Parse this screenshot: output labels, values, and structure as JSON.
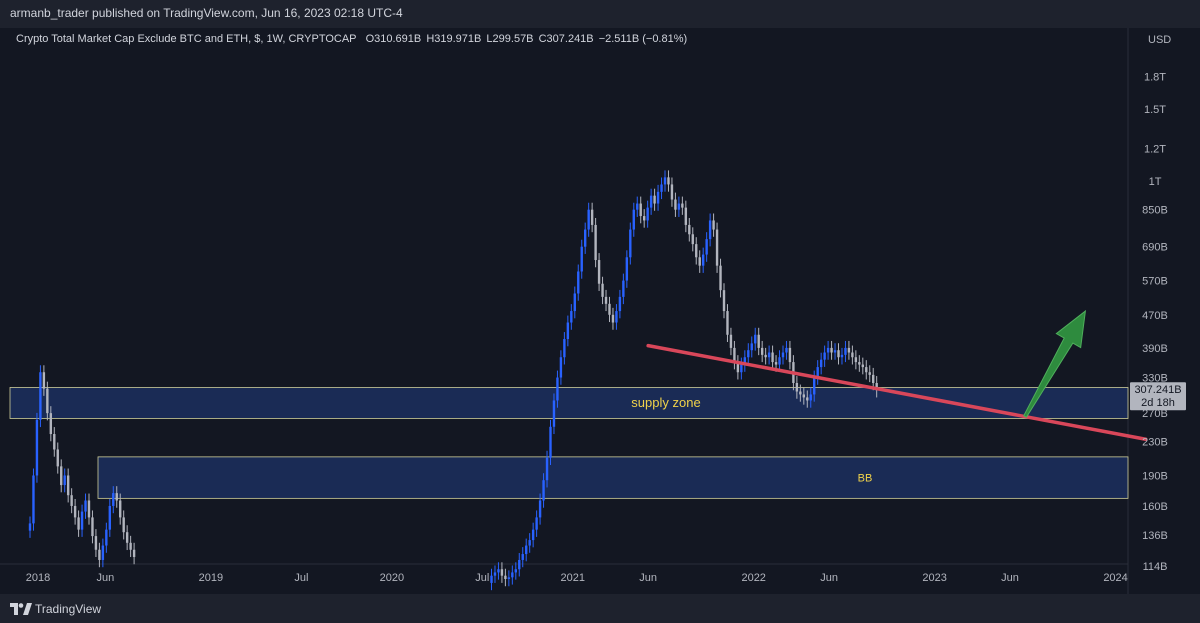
{
  "header": {
    "published_line": "armanb_trader published on TradingView.com, Jun 16, 2023 02:18 UTC-4"
  },
  "legend": {
    "symbol": "Crypto Total Market Cap Exclude BTC and ETH, $, 1W, CRYPTOCAP",
    "open": "O310.691B",
    "high": "H319.971B",
    "low": "L299.57B",
    "close": "C307.241B",
    "change": "−2.511B (−0.81%)"
  },
  "footer": {
    "brand": "TradingView"
  },
  "colors": {
    "background": "#131722",
    "candle_up": "#2962ff",
    "candle_down": "#b2b5be",
    "trendline": "#d9475a",
    "arrow": "#2e8b3e",
    "zone_fill": "#1c2f5e",
    "zone_border": "#cfcf9a",
    "zone_label": "#f0d24a"
  },
  "chart_data": {
    "type": "candlestick",
    "title": "Crypto Total Market Cap Exclude BTC and ETH, $, 1W, CRYPTOCAP",
    "currency_label": "USD",
    "y_scale": "log",
    "ylim": [
      "106B",
      "2.25T"
    ],
    "y_ticks": [
      "1.8T",
      "1.5T",
      "1.2T",
      "1T",
      "850B",
      "690B",
      "570B",
      "470B",
      "390B",
      "330B",
      "270B",
      "230B",
      "190B",
      "160B",
      "136B",
      "114B"
    ],
    "x_ticks": [
      "2018",
      "Jun",
      "2019",
      "Jul",
      "2020",
      "Jul",
      "2021",
      "Jun",
      "2022",
      "Jun",
      "2023",
      "Jun",
      "2024"
    ],
    "price_label": {
      "value": "307.241B",
      "countdown": "2d 18h"
    },
    "zones": [
      {
        "label": "supply zone",
        "high_B": 312,
        "low_B": 262
      },
      {
        "label": "BB",
        "high_B": 211,
        "low_B": 167
      }
    ],
    "trendline": {
      "from": [
        "2021-06",
        "395B"
      ],
      "to": [
        "2024-03",
        "233B"
      ]
    },
    "arrow": {
      "direction": "up",
      "from": [
        "2023-07",
        "265B"
      ],
      "to": [
        "2023-11",
        "480B"
      ]
    },
    "series": [
      {
        "period": "2018-01 to 2018-07",
        "points": [
          [
            0,
            145
          ],
          [
            1,
            190
          ],
          [
            2,
            260
          ],
          [
            3,
            340
          ],
          [
            4,
            310
          ],
          [
            5,
            270
          ],
          [
            6,
            240
          ],
          [
            7,
            220
          ],
          [
            8,
            200
          ],
          [
            9,
            180
          ],
          [
            10,
            190
          ],
          [
            11,
            170
          ],
          [
            12,
            160
          ],
          [
            13,
            150
          ],
          [
            14,
            140
          ],
          [
            15,
            155
          ],
          [
            16,
            165
          ],
          [
            17,
            150
          ],
          [
            18,
            135
          ],
          [
            19,
            125
          ],
          [
            20,
            118
          ],
          [
            21,
            128
          ],
          [
            22,
            140
          ],
          [
            23,
            160
          ],
          [
            24,
            172
          ],
          [
            25,
            165
          ],
          [
            26,
            150
          ],
          [
            27,
            138
          ],
          [
            28,
            130
          ],
          [
            29,
            125
          ],
          [
            30,
            120
          ]
        ]
      },
      {
        "period": "2020-08 to 2023-06",
        "points": [
          [
            133,
            108
          ],
          [
            134,
            110
          ],
          [
            135,
            112
          ],
          [
            136,
            108
          ],
          [
            137,
            106
          ],
          [
            138,
            107
          ],
          [
            139,
            110
          ],
          [
            140,
            112
          ],
          [
            141,
            118
          ],
          [
            142,
            122
          ],
          [
            143,
            128
          ],
          [
            144,
            132
          ],
          [
            145,
            140
          ],
          [
            146,
            150
          ],
          [
            147,
            165
          ],
          [
            148,
            185
          ],
          [
            149,
            210
          ],
          [
            150,
            250
          ],
          [
            151,
            290
          ],
          [
            152,
            330
          ],
          [
            153,
            370
          ],
          [
            154,
            410
          ],
          [
            155,
            450
          ],
          [
            156,
            480
          ],
          [
            157,
            530
          ],
          [
            158,
            600
          ],
          [
            159,
            690
          ],
          [
            160,
            760
          ],
          [
            161,
            850
          ],
          [
            162,
            780
          ],
          [
            163,
            640
          ],
          [
            164,
            560
          ],
          [
            165,
            520
          ],
          [
            166,
            500
          ],
          [
            167,
            470
          ],
          [
            168,
            450
          ],
          [
            169,
            480
          ],
          [
            170,
            520
          ],
          [
            171,
            570
          ],
          [
            172,
            650
          ],
          [
            173,
            760
          ],
          [
            174,
            850
          ],
          [
            175,
            880
          ],
          [
            176,
            820
          ],
          [
            177,
            800
          ],
          [
            178,
            860
          ],
          [
            179,
            920
          ],
          [
            180,
            880
          ],
          [
            181,
            940
          ],
          [
            182,
            980
          ],
          [
            183,
            1020
          ],
          [
            184,
            980
          ],
          [
            185,
            900
          ],
          [
            186,
            850
          ],
          [
            187,
            880
          ],
          [
            188,
            860
          ],
          [
            189,
            780
          ],
          [
            190,
            740
          ],
          [
            191,
            700
          ],
          [
            192,
            650
          ],
          [
            193,
            620
          ],
          [
            194,
            660
          ],
          [
            195,
            720
          ],
          [
            196,
            800
          ],
          [
            197,
            760
          ],
          [
            198,
            620
          ],
          [
            199,
            540
          ],
          [
            200,
            480
          ],
          [
            201,
            420
          ],
          [
            202,
            390
          ],
          [
            203,
            360
          ],
          [
            204,
            340
          ],
          [
            205,
            355
          ],
          [
            206,
            370
          ],
          [
            207,
            385
          ],
          [
            208,
            400
          ],
          [
            209,
            420
          ],
          [
            210,
            390
          ],
          [
            211,
            375
          ],
          [
            212,
            370
          ],
          [
            213,
            380
          ],
          [
            214,
            360
          ],
          [
            215,
            355
          ],
          [
            216,
            370
          ],
          [
            217,
            380
          ],
          [
            218,
            390
          ],
          [
            219,
            360
          ],
          [
            220,
            320
          ],
          [
            221,
            305
          ],
          [
            222,
            300
          ],
          [
            223,
            295
          ],
          [
            224,
            290
          ],
          [
            225,
            300
          ],
          [
            226,
            330
          ],
          [
            227,
            350
          ],
          [
            228,
            365
          ],
          [
            229,
            380
          ],
          [
            230,
            390
          ],
          [
            231,
            380
          ],
          [
            232,
            385
          ],
          [
            233,
            370
          ],
          [
            234,
            375
          ],
          [
            235,
            390
          ],
          [
            236,
            380
          ],
          [
            237,
            370
          ],
          [
            238,
            360
          ],
          [
            239,
            355
          ],
          [
            240,
            350
          ],
          [
            241,
            340
          ],
          [
            242,
            335
          ],
          [
            243,
            320
          ],
          [
            244,
            307.241
          ]
        ]
      }
    ]
  }
}
